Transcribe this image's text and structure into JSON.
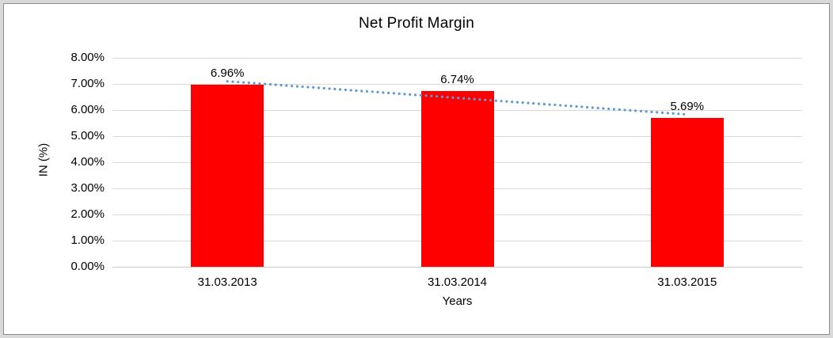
{
  "window": {
    "frame_color": "#d9d9d9",
    "border_color": "#8c8c8c",
    "background": "#ffffff"
  },
  "chart_data": {
    "type": "bar",
    "title": "Net Profit Margin",
    "xlabel": "Years",
    "ylabel": "IN (%)",
    "categories": [
      "31.03.2013",
      "31.03.2014",
      "31.03.2015"
    ],
    "values": [
      6.96,
      6.74,
      5.69
    ],
    "data_labels": [
      "6.96%",
      "6.74%",
      "5.69%"
    ],
    "ylim": [
      0,
      8
    ],
    "ytick_step": 1,
    "ytick_labels": [
      "0.00%",
      "1.00%",
      "2.00%",
      "3.00%",
      "4.00%",
      "5.00%",
      "6.00%",
      "7.00%",
      "8.00%"
    ],
    "grid": true,
    "legend": "none",
    "bar_color": "#ff0000",
    "gridline_color": "#d9d9d9",
    "text_color": "#000000",
    "trendline": {
      "type": "linear",
      "style": "round-dot",
      "color": "#5b9bd5",
      "start_value": 7.1,
      "end_value": 5.83
    }
  }
}
